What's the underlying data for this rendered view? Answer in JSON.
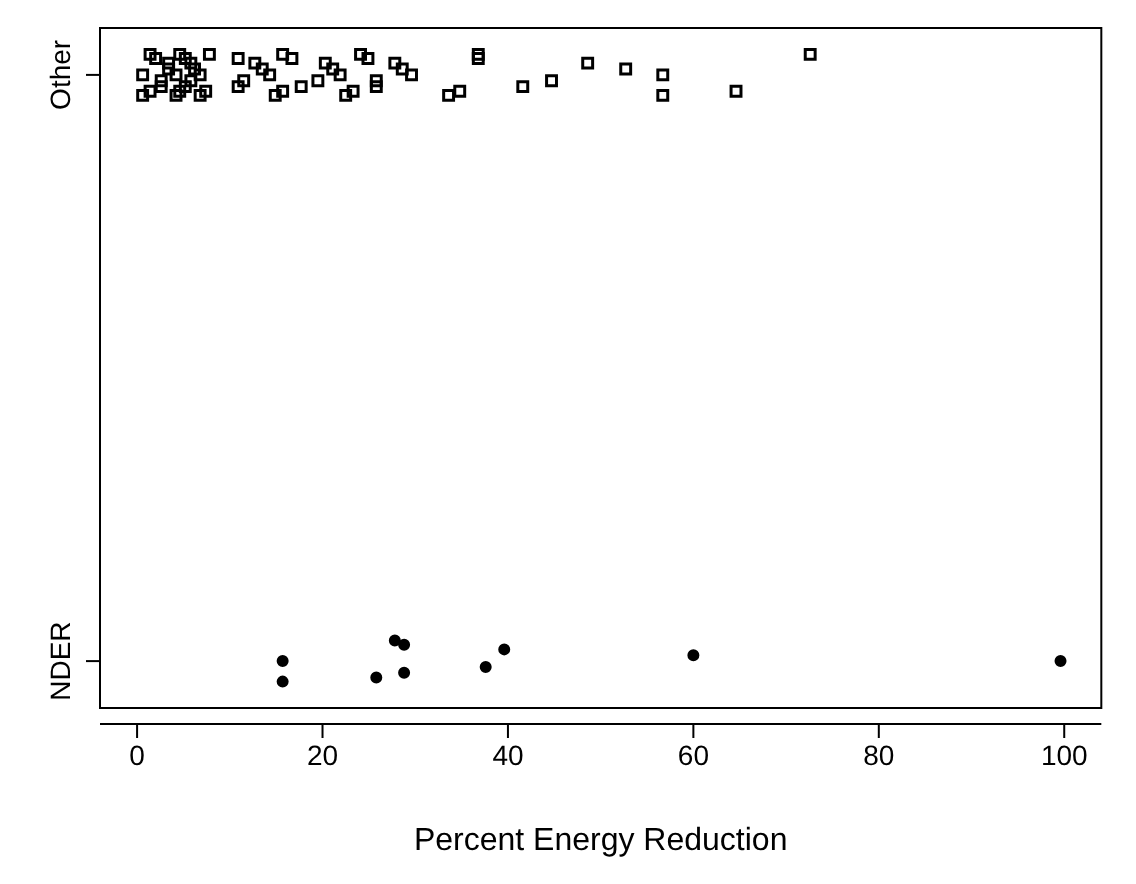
{
  "chart_data": {
    "type": "scatter",
    "orientation": "horizontal",
    "xlabel": "Percent Energy Reduction",
    "categories": [
      "Other",
      "NDER"
    ],
    "xlim": [
      -4,
      104
    ],
    "xticks": [
      0,
      20,
      40,
      60,
      80,
      100
    ],
    "legend": false,
    "grid": false,
    "series": [
      {
        "color": "#000000",
        "marker": "square",
        "values": [
          0.6,
          0.6,
          1.4,
          1.4,
          2,
          2.6,
          2.6,
          3.4,
          3.4,
          4.2,
          4.2,
          4.6,
          4.6,
          5.2,
          5.2,
          5.8,
          5.8,
          6.2,
          6.8,
          6.8,
          7.4,
          7.8,
          10.9,
          10.9,
          11.5,
          12.7,
          13.5,
          14.3,
          14.9,
          15.7,
          15.7,
          16.7,
          17.7,
          19.5,
          20.3,
          21.1,
          21.9,
          22.5,
          23.3,
          24.1,
          24.9,
          25.8,
          25.8,
          27.8,
          28.6,
          29.6,
          33.6,
          34.8,
          36.8,
          36.8,
          41.6,
          44.7,
          48.6,
          52.7,
          56.7,
          56.7,
          64.6,
          72.6
        ],
        "x": [
          "Other",
          "Other",
          "Other",
          "Other",
          "Other",
          "Other",
          "Other",
          "Other",
          "Other",
          "Other",
          "Other",
          "Other",
          "Other",
          "Other",
          "Other",
          "Other",
          "Other",
          "Other",
          "Other",
          "Other",
          "Other",
          "Other",
          "Other",
          "Other",
          "Other",
          "Other",
          "Other",
          "Other",
          "Other",
          "Other",
          "Other",
          "Other",
          "Other",
          "Other",
          "Other",
          "Other",
          "Other",
          "Other",
          "Other",
          "Other",
          "Other",
          "Other",
          "Other",
          "Other",
          "Other",
          "Other",
          "Other",
          "Other",
          "Other",
          "Other",
          "Other",
          "Other",
          "Other",
          "Other",
          "Other",
          "Other",
          "Other",
          "Other"
        ]
      },
      {
        "color": "#000000",
        "marker": "circle",
        "values": [
          15.7,
          15.7,
          25.8,
          27.8,
          28.8,
          28.8,
          37.6,
          39.6,
          60,
          99.6
        ],
        "x": [
          "NDER",
          "NDER",
          "NDER",
          "NDER",
          "NDER",
          "NDER",
          "NDER",
          "NDER",
          "NDER",
          "NDER"
        ]
      }
    ]
  }
}
